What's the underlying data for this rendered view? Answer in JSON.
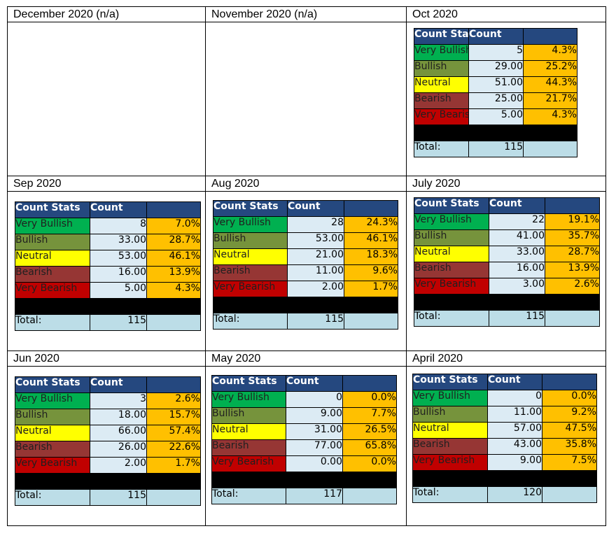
{
  "panels": [
    {
      "title": "December 2020 (n/a)",
      "stats": null
    },
    {
      "title": "November 2020 (n/a)",
      "stats": null
    },
    {
      "title": "Oct 2020",
      "stats": {
        "header": [
          "Count Stats",
          "Count",
          ""
        ],
        "rows": [
          [
            "Very Bullish",
            "5",
            "4.3%"
          ],
          [
            "Bullish",
            "29.00",
            "25.2%"
          ],
          [
            "Neutral",
            "51.00",
            "44.3%"
          ],
          [
            "Bearish",
            "25.00",
            "21.7%"
          ],
          [
            "Very Bearish",
            "5.00",
            "4.3%"
          ]
        ],
        "total_label": "Total:",
        "total": "115"
      }
    },
    {
      "title": "Sep 2020",
      "stats": {
        "header": [
          "Count Stats",
          "Count",
          ""
        ],
        "rows": [
          [
            "Very Bullish",
            "8",
            "7.0%"
          ],
          [
            "Bullish",
            "33.00",
            "28.7%"
          ],
          [
            "Neutral",
            "53.00",
            "46.1%"
          ],
          [
            "Bearish",
            "16.00",
            "13.9%"
          ],
          [
            "Very Bearish",
            "5.00",
            "4.3%"
          ]
        ],
        "total_label": "Total:",
        "total": "115"
      }
    },
    {
      "title": "Aug 2020",
      "stats": {
        "header": [
          "Count Stats",
          "Count",
          ""
        ],
        "rows": [
          [
            "Very Bullish",
            "28",
            "24.3%"
          ],
          [
            "Bullish",
            "53.00",
            "46.1%"
          ],
          [
            "Neutral",
            "21.00",
            "18.3%"
          ],
          [
            "Bearish",
            "11.00",
            "9.6%"
          ],
          [
            "Very Bearish",
            "2.00",
            "1.7%"
          ]
        ],
        "total_label": "Total:",
        "total": "115"
      }
    },
    {
      "title": "July 2020",
      "stats": {
        "header": [
          "Count Stats",
          "Count",
          ""
        ],
        "rows": [
          [
            "Very Bullish",
            "22",
            "19.1%"
          ],
          [
            "Bullish",
            "41.00",
            "35.7%"
          ],
          [
            "Neutral",
            "33.00",
            "28.7%"
          ],
          [
            "Bearish",
            "16.00",
            "13.9%"
          ],
          [
            "Very Bearish",
            "3.00",
            "2.6%"
          ]
        ],
        "total_label": "Total:",
        "total": "115"
      }
    },
    {
      "title": "Jun 2020",
      "stats": {
        "header": [
          "Count Stats",
          "Count",
          ""
        ],
        "rows": [
          [
            "Very Bullish",
            "3",
            "2.6%"
          ],
          [
            "Bullish",
            "18.00",
            "15.7%"
          ],
          [
            "Neutral",
            "66.00",
            "57.4%"
          ],
          [
            "Bearish",
            "26.00",
            "22.6%"
          ],
          [
            "Very Bearish",
            "2.00",
            "1.7%"
          ]
        ],
        "total_label": "Total:",
        "total": "115"
      }
    },
    {
      "title": "May 2020",
      "stats": {
        "header": [
          "Count Stats",
          "Count",
          ""
        ],
        "rows": [
          [
            "Very Bullish",
            "0",
            "0.0%"
          ],
          [
            "Bullish",
            "9.00",
            "7.7%"
          ],
          [
            "Neutral",
            "31.00",
            "26.5%"
          ],
          [
            "Bearish",
            "77.00",
            "65.8%"
          ],
          [
            "Very Bearish",
            "0.00",
            "0.0%"
          ]
        ],
        "total_label": "Total:",
        "total": "117"
      }
    },
    {
      "title": "April 2020",
      "stats": {
        "header": [
          "Count Stats",
          "Count",
          ""
        ],
        "rows": [
          [
            "Very Bullish",
            "0",
            "0.0%"
          ],
          [
            "Bullish",
            "11.00",
            "9.2%"
          ],
          [
            "Neutral",
            "57.00",
            "47.5%"
          ],
          [
            "Bearish",
            "43.00",
            "35.8%"
          ],
          [
            "Very Bearish",
            "9.00",
            "7.5%"
          ]
        ],
        "total_label": "Total:",
        "total": "120"
      }
    }
  ],
  "sentiment_colors": {
    "very_bullish": "#00b050",
    "bullish": "#76933c",
    "neutral": "#ffff00",
    "bearish": "#963634",
    "very_bearish": "#c00000",
    "header": "#25487f",
    "percent": "#ffc000",
    "count": "#dcebf4",
    "total": "#bcdde7"
  }
}
